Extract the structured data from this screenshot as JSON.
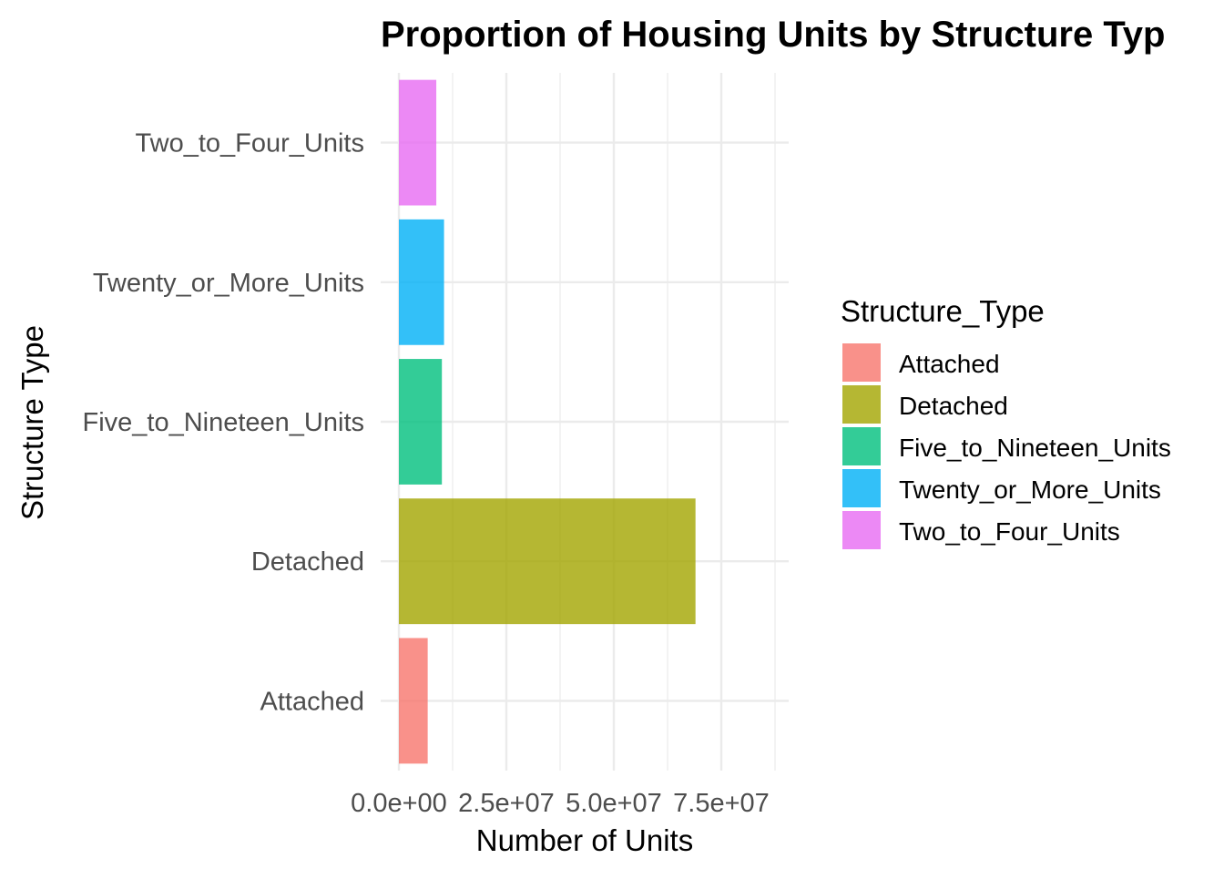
{
  "chart_data": {
    "type": "bar",
    "orientation": "horizontal",
    "title": "Proportion of Housing Units by Structure Typ",
    "xlabel": "Number of Units",
    "ylabel": "Structure Type",
    "categories": [
      "Attached",
      "Detached",
      "Five_to_Nineteen_Units",
      "Twenty_or_More_Units",
      "Two_to_Four_Units"
    ],
    "values": [
      6700000,
      69000000,
      10000000,
      10500000,
      8700000
    ],
    "colors": [
      "#F8766D",
      "#A3A500",
      "#00BF7D",
      "#00B0F6",
      "#E76BF3"
    ],
    "bar_opacity": 0.8,
    "xlim": [
      0,
      72500000
    ],
    "x_ticks": [
      0,
      25000000,
      50000000,
      75000000
    ],
    "x_tick_labels": [
      "0.0e+00",
      "2.5e+07",
      "5.0e+07",
      "7.5e+07"
    ],
    "grid": true,
    "legend": {
      "title": "Structure_Type",
      "position": "right",
      "entries": [
        "Attached",
        "Detached",
        "Five_to_Nineteen_Units",
        "Twenty_or_More_Units",
        "Two_to_Four_Units"
      ]
    }
  }
}
